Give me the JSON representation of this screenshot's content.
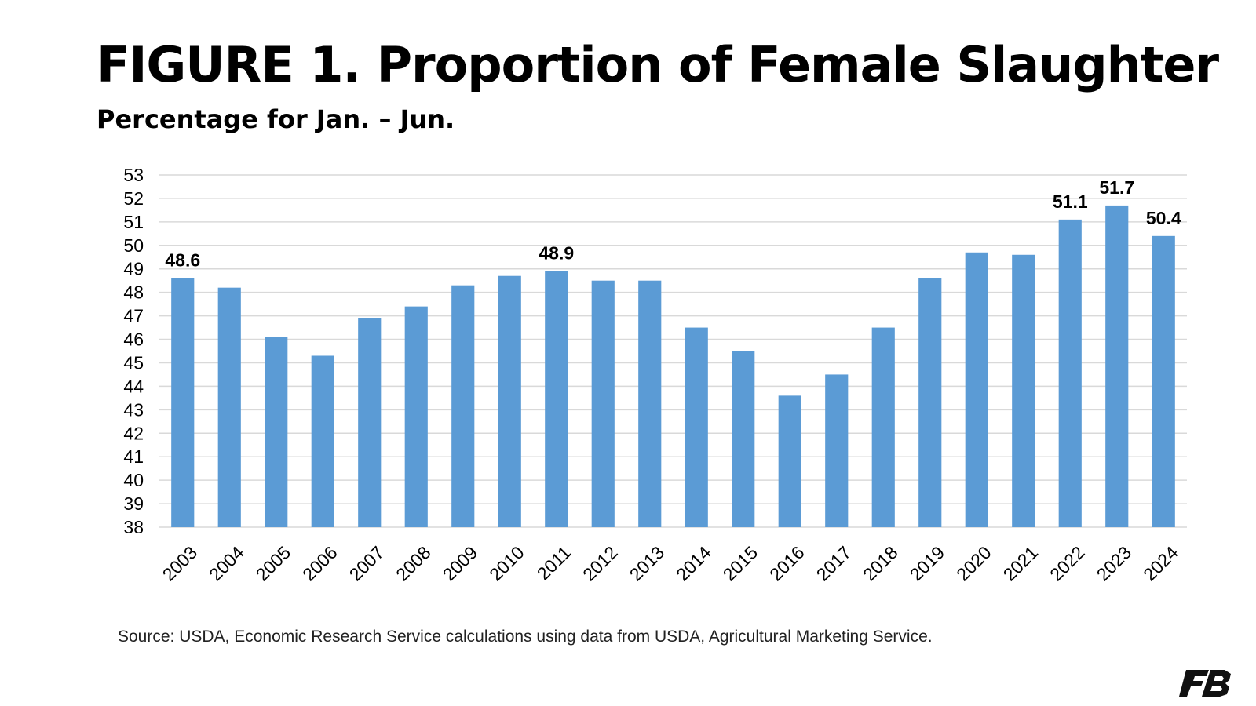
{
  "header": {
    "title": "FIGURE 1. Proportion of Female Slaughter",
    "subtitle": "Percentage for Jan. – Jun."
  },
  "footer": {
    "source": "Source: USDA, Economic Research Service calculations using data from USDA, Agricultural Marketing Service."
  },
  "logo": {
    "text": "FB",
    "icon": "farm-bureau-logo"
  },
  "chart_data": {
    "type": "bar",
    "categories": [
      "2003",
      "2004",
      "2005",
      "2006",
      "2007",
      "2008",
      "2009",
      "2010",
      "2011",
      "2012",
      "2013",
      "2014",
      "2015",
      "2016",
      "2017",
      "2018",
      "2019",
      "2020",
      "2021",
      "2022",
      "2023",
      "2024"
    ],
    "values": [
      48.6,
      48.2,
      46.1,
      45.3,
      46.9,
      47.4,
      48.3,
      48.7,
      48.9,
      48.5,
      48.5,
      46.5,
      45.5,
      43.6,
      44.5,
      46.5,
      48.6,
      49.7,
      49.6,
      51.1,
      51.7,
      50.4
    ],
    "data_labels": [
      {
        "category": "2003",
        "text": "48.6"
      },
      {
        "category": "2011",
        "text": "48.9"
      },
      {
        "category": "2022",
        "text": "51.1"
      },
      {
        "category": "2023",
        "text": "51.7"
      },
      {
        "category": "2024",
        "text": "50.4"
      }
    ],
    "ylim": [
      38,
      53
    ],
    "yticks": [
      38,
      39,
      40,
      41,
      42,
      43,
      44,
      45,
      46,
      47,
      48,
      49,
      50,
      51,
      52,
      53
    ],
    "grid": true,
    "bar_color": "#5b9bd5",
    "grid_color": "#d9d9d9"
  }
}
